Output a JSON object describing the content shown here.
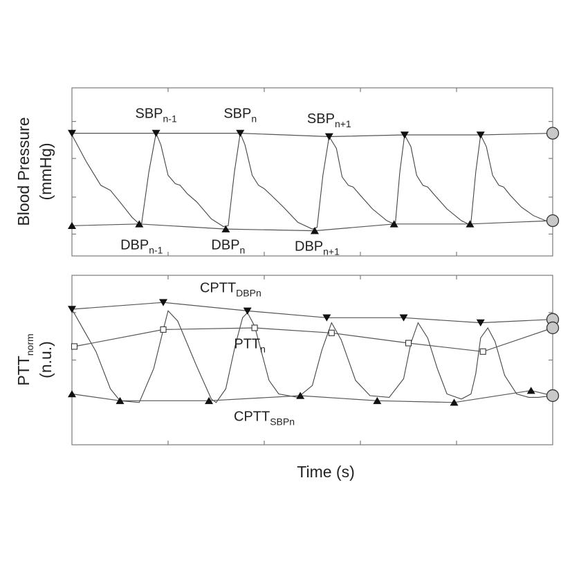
{
  "chart_data": [
    {
      "type": "line",
      "ylabel_line1": "Blood Pressure",
      "ylabel_line2": "(mmHg)",
      "xlabel": "",
      "series": [
        {
          "points": [
            [
              0.0,
              0.72
            ],
            [
              0.03,
              0.56
            ],
            [
              0.06,
              0.42
            ],
            [
              0.08,
              0.39
            ],
            [
              0.1,
              0.32
            ],
            [
              0.125,
              0.23
            ],
            [
              0.14,
              0.19
            ],
            [
              0.145,
              0.195
            ],
            [
              0.16,
              0.5
            ],
            [
              0.175,
              0.73
            ],
            [
              0.185,
              0.66
            ],
            [
              0.2,
              0.48
            ],
            [
              0.215,
              0.43
            ],
            [
              0.225,
              0.42
            ],
            [
              0.24,
              0.37
            ],
            [
              0.26,
              0.32
            ],
            [
              0.29,
              0.22
            ],
            [
              0.315,
              0.175
            ],
            [
              0.325,
              0.18
            ],
            [
              0.338,
              0.5
            ],
            [
              0.35,
              0.73
            ],
            [
              0.36,
              0.66
            ],
            [
              0.375,
              0.48
            ],
            [
              0.388,
              0.42
            ],
            [
              0.4,
              0.4
            ],
            [
              0.415,
              0.36
            ],
            [
              0.44,
              0.29
            ],
            [
              0.47,
              0.2
            ],
            [
              0.5,
              0.16
            ],
            [
              0.51,
              0.17
            ],
            [
              0.522,
              0.48
            ],
            [
              0.535,
              0.71
            ],
            [
              0.55,
              0.64
            ],
            [
              0.562,
              0.47
            ],
            [
              0.575,
              0.42
            ],
            [
              0.585,
              0.41
            ],
            [
              0.6,
              0.36
            ],
            [
              0.625,
              0.28
            ],
            [
              0.655,
              0.21
            ],
            [
              0.67,
              0.19
            ],
            [
              0.673,
              0.2
            ],
            [
              0.682,
              0.5
            ],
            [
              0.692,
              0.72
            ],
            [
              0.705,
              0.65
            ],
            [
              0.717,
              0.48
            ],
            [
              0.73,
              0.42
            ],
            [
              0.74,
              0.41
            ],
            [
              0.755,
              0.36
            ],
            [
              0.78,
              0.28
            ],
            [
              0.81,
              0.21
            ],
            [
              0.828,
              0.185
            ],
            [
              0.83,
              0.2
            ],
            [
              0.84,
              0.5
            ],
            [
              0.85,
              0.72
            ],
            [
              0.862,
              0.65
            ],
            [
              0.875,
              0.48
            ],
            [
              0.888,
              0.42
            ],
            [
              0.898,
              0.41
            ],
            [
              0.912,
              0.36
            ],
            [
              0.935,
              0.29
            ],
            [
              0.96,
              0.24
            ],
            [
              0.985,
              0.21
            ],
            [
              1.0,
              0.21
            ]
          ]
        },
        {
          "points": [
            [
              0.0,
              0.73
            ],
            [
              0.175,
              0.73
            ],
            [
              0.35,
              0.73
            ],
            [
              0.535,
              0.71
            ],
            [
              0.692,
              0.72
            ],
            [
              0.85,
              0.72
            ],
            [
              1.0,
              0.73
            ]
          ]
        },
        {
          "points": [
            [
              0.0,
              0.18
            ],
            [
              0.14,
              0.19
            ],
            [
              0.32,
              0.16
            ],
            [
              0.505,
              0.15
            ],
            [
              0.67,
              0.19
            ],
            [
              0.828,
              0.19
            ],
            [
              1.0,
              0.21
            ]
          ]
        }
      ],
      "annotations": [
        {
          "main": "SBP",
          "sub": "n-1",
          "x": 0.175,
          "y": 0.82
        },
        {
          "main": "SBP",
          "sub": "n",
          "x": 0.35,
          "y": 0.82
        },
        {
          "main": "SBP",
          "sub": "n+1",
          "x": 0.535,
          "y": 0.79
        },
        {
          "main": "DBP",
          "sub": "n-1",
          "x": 0.145,
          "y": 0.04
        },
        {
          "main": "DBP",
          "sub": "n",
          "x": 0.325,
          "y": 0.04
        },
        {
          "main": "DBP",
          "sub": "n+1",
          "x": 0.51,
          "y": 0.03
        }
      ]
    },
    {
      "type": "line",
      "ylabel_line1": "PTT",
      "ylabel_line1_sub": "norm",
      "ylabel_line2": "(n.u.)",
      "xlabel": "Time (s)",
      "series": [
        {
          "points": [
            [
              0.0,
              0.8
            ],
            [
              0.03,
              0.65
            ],
            [
              0.05,
              0.55
            ],
            [
              0.08,
              0.33
            ],
            [
              0.1,
              0.26
            ],
            [
              0.14,
              0.25
            ],
            [
              0.17,
              0.45
            ],
            [
              0.19,
              0.68
            ],
            [
              0.2,
              0.79
            ],
            [
              0.22,
              0.73
            ],
            [
              0.26,
              0.46
            ],
            [
              0.29,
              0.27
            ],
            [
              0.3,
              0.25
            ],
            [
              0.32,
              0.33
            ],
            [
              0.34,
              0.59
            ],
            [
              0.355,
              0.75
            ],
            [
              0.365,
              0.78
            ],
            [
              0.38,
              0.7
            ],
            [
              0.41,
              0.38
            ],
            [
              0.43,
              0.3
            ],
            [
              0.47,
              0.28
            ],
            [
              0.5,
              0.35
            ],
            [
              0.52,
              0.56
            ],
            [
              0.54,
              0.72
            ],
            [
              0.56,
              0.62
            ],
            [
              0.59,
              0.38
            ],
            [
              0.62,
              0.29
            ],
            [
              0.66,
              0.28
            ],
            [
              0.69,
              0.39
            ],
            [
              0.705,
              0.6
            ],
            [
              0.72,
              0.72
            ],
            [
              0.74,
              0.63
            ],
            [
              0.76,
              0.45
            ],
            [
              0.78,
              0.3
            ],
            [
              0.81,
              0.27
            ],
            [
              0.83,
              0.3
            ],
            [
              0.84,
              0.42
            ],
            [
              0.85,
              0.63
            ],
            [
              0.865,
              0.69
            ],
            [
              0.88,
              0.61
            ],
            [
              0.9,
              0.41
            ],
            [
              0.925,
              0.3
            ],
            [
              0.95,
              0.28
            ],
            [
              0.97,
              0.28
            ],
            [
              1.0,
              0.29
            ]
          ]
        },
        {
          "points": [
            [
              0.0,
              0.8
            ],
            [
              0.19,
              0.84
            ],
            [
              0.365,
              0.79
            ],
            [
              0.53,
              0.75
            ],
            [
              0.69,
              0.75
            ],
            [
              0.85,
              0.72
            ],
            [
              1.0,
              0.74
            ]
          ]
        },
        {
          "points": [
            [
              0.005,
              0.58
            ],
            [
              0.19,
              0.68
            ],
            [
              0.38,
              0.69
            ],
            [
              0.54,
              0.66
            ],
            [
              0.7,
              0.6
            ],
            [
              0.855,
              0.55
            ],
            [
              1.0,
              0.69
            ]
          ]
        },
        {
          "points": [
            [
              0.0,
              0.3
            ],
            [
              0.1,
              0.26
            ],
            [
              0.285,
              0.26
            ],
            [
              0.475,
              0.29
            ],
            [
              0.635,
              0.26
            ],
            [
              0.795,
              0.25
            ],
            [
              0.955,
              0.32
            ],
            [
              1.0,
              0.29
            ]
          ]
        }
      ],
      "annotations": [
        {
          "main": "CPTT",
          "sub": "DBPn",
          "x": 0.33,
          "y": 0.9
        },
        {
          "main": "PTT",
          "sub": "n",
          "x": 0.37,
          "y": 0.57
        },
        {
          "main": "CPTT",
          "sub": "SBPn",
          "x": 0.4,
          "y": 0.14
        }
      ]
    }
  ]
}
